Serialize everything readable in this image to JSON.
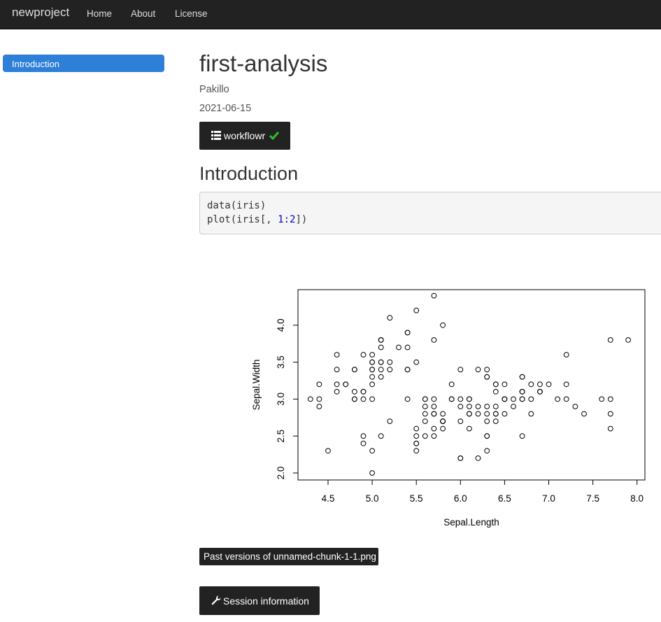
{
  "navbar": {
    "brand": "newproject",
    "links": [
      "Home",
      "About",
      "License"
    ]
  },
  "toc": {
    "active_item": "Introduction"
  },
  "header": {
    "title": "first-analysis",
    "author": "Pakillo",
    "date": "2021-06-15",
    "workflowr_label": "workflowr"
  },
  "section": {
    "heading": "Introduction",
    "code_line1": "data(iris)",
    "code_line2_pre": "plot(iris[, ",
    "code_line2_num": "1:2",
    "code_line2_post": "])"
  },
  "buttons": {
    "past_versions": "Past versions of unnamed-chunk-1-1.png",
    "session_info": "Session information"
  },
  "colors": {
    "navbar_bg": "#222222",
    "toc_active_bg": "#2e7fd8",
    "check_green": "#2ebd2e",
    "code_number": "#0000cf"
  },
  "icons": {
    "workflowr": "list-icon",
    "status": "check-icon",
    "session": "wrench-icon"
  },
  "chart_data": {
    "type": "scatter",
    "xlabel": "Sepal.Length",
    "ylabel": "Sepal.Width",
    "xlim": [
      4.3,
      7.9
    ],
    "ylim": [
      2.0,
      4.4
    ],
    "x_ticks": [
      "4.5",
      "5.0",
      "5.5",
      "6.0",
      "6.5",
      "7.0",
      "7.5",
      "8.0"
    ],
    "y_ticks": [
      "2.0",
      "2.5",
      "3.0",
      "3.5",
      "4.0"
    ],
    "points": [
      [
        5.1,
        3.5
      ],
      [
        4.9,
        3.0
      ],
      [
        4.7,
        3.2
      ],
      [
        4.6,
        3.1
      ],
      [
        5.0,
        3.6
      ],
      [
        5.4,
        3.9
      ],
      [
        4.6,
        3.4
      ],
      [
        5.0,
        3.4
      ],
      [
        4.4,
        2.9
      ],
      [
        4.9,
        3.1
      ],
      [
        5.4,
        3.7
      ],
      [
        4.8,
        3.4
      ],
      [
        4.8,
        3.0
      ],
      [
        4.3,
        3.0
      ],
      [
        5.8,
        4.0
      ],
      [
        5.7,
        4.4
      ],
      [
        5.4,
        3.9
      ],
      [
        5.1,
        3.5
      ],
      [
        5.7,
        3.8
      ],
      [
        5.1,
        3.8
      ],
      [
        5.4,
        3.4
      ],
      [
        5.1,
        3.7
      ],
      [
        4.6,
        3.6
      ],
      [
        5.1,
        3.3
      ],
      [
        4.8,
        3.4
      ],
      [
        5.0,
        3.0
      ],
      [
        5.0,
        3.4
      ],
      [
        5.2,
        3.5
      ],
      [
        5.2,
        3.4
      ],
      [
        4.7,
        3.2
      ],
      [
        4.8,
        3.1
      ],
      [
        5.4,
        3.4
      ],
      [
        5.2,
        4.1
      ],
      [
        5.5,
        4.2
      ],
      [
        4.9,
        3.1
      ],
      [
        5.0,
        3.2
      ],
      [
        5.5,
        3.5
      ],
      [
        4.9,
        3.6
      ],
      [
        4.4,
        3.0
      ],
      [
        5.1,
        3.4
      ],
      [
        5.0,
        3.5
      ],
      [
        4.5,
        2.3
      ],
      [
        4.4,
        3.2
      ],
      [
        5.0,
        3.5
      ],
      [
        5.1,
        3.8
      ],
      [
        4.8,
        3.0
      ],
      [
        5.1,
        3.8
      ],
      [
        4.6,
        3.2
      ],
      [
        5.3,
        3.7
      ],
      [
        5.0,
        3.3
      ],
      [
        7.0,
        3.2
      ],
      [
        6.4,
        3.2
      ],
      [
        6.9,
        3.1
      ],
      [
        5.5,
        2.3
      ],
      [
        6.5,
        2.8
      ],
      [
        5.7,
        2.8
      ],
      [
        6.3,
        3.3
      ],
      [
        4.9,
        2.4
      ],
      [
        6.6,
        2.9
      ],
      [
        5.2,
        2.7
      ],
      [
        5.0,
        2.0
      ],
      [
        5.9,
        3.0
      ],
      [
        6.0,
        2.2
      ],
      [
        6.1,
        2.9
      ],
      [
        5.6,
        2.9
      ],
      [
        6.7,
        3.1
      ],
      [
        5.6,
        3.0
      ],
      [
        5.8,
        2.7
      ],
      [
        6.2,
        2.2
      ],
      [
        5.6,
        2.5
      ],
      [
        5.9,
        3.2
      ],
      [
        6.1,
        2.8
      ],
      [
        6.3,
        2.5
      ],
      [
        6.1,
        2.8
      ],
      [
        6.4,
        2.9
      ],
      [
        6.6,
        3.0
      ],
      [
        6.8,
        2.8
      ],
      [
        6.7,
        3.0
      ],
      [
        6.0,
        2.9
      ],
      [
        5.7,
        2.6
      ],
      [
        5.5,
        2.4
      ],
      [
        5.5,
        2.4
      ],
      [
        5.8,
        2.7
      ],
      [
        6.0,
        2.7
      ],
      [
        5.4,
        3.0
      ],
      [
        6.0,
        3.4
      ],
      [
        6.7,
        3.1
      ],
      [
        6.3,
        2.3
      ],
      [
        5.6,
        3.0
      ],
      [
        5.5,
        2.5
      ],
      [
        5.5,
        2.6
      ],
      [
        6.1,
        3.0
      ],
      [
        5.8,
        2.6
      ],
      [
        5.0,
        2.3
      ],
      [
        5.6,
        2.7
      ],
      [
        5.7,
        3.0
      ],
      [
        5.7,
        2.9
      ],
      [
        6.2,
        2.9
      ],
      [
        5.1,
        2.5
      ],
      [
        5.7,
        2.8
      ],
      [
        6.3,
        3.3
      ],
      [
        5.8,
        2.7
      ],
      [
        7.1,
        3.0
      ],
      [
        6.3,
        2.9
      ],
      [
        6.5,
        3.0
      ],
      [
        7.6,
        3.0
      ],
      [
        4.9,
        2.5
      ],
      [
        7.3,
        2.9
      ],
      [
        6.7,
        2.5
      ],
      [
        7.2,
        3.6
      ],
      [
        6.5,
        3.2
      ],
      [
        6.4,
        2.7
      ],
      [
        6.8,
        3.0
      ],
      [
        5.7,
        2.5
      ],
      [
        5.8,
        2.8
      ],
      [
        6.4,
        3.2
      ],
      [
        6.5,
        3.0
      ],
      [
        7.7,
        3.8
      ],
      [
        7.7,
        2.6
      ],
      [
        6.0,
        2.2
      ],
      [
        6.9,
        3.2
      ],
      [
        5.6,
        2.8
      ],
      [
        7.7,
        2.8
      ],
      [
        6.3,
        2.7
      ],
      [
        6.7,
        3.3
      ],
      [
        7.2,
        3.2
      ],
      [
        6.2,
        2.8
      ],
      [
        6.1,
        3.0
      ],
      [
        6.4,
        2.8
      ],
      [
        7.2,
        3.0
      ],
      [
        7.4,
        2.8
      ],
      [
        7.9,
        3.8
      ],
      [
        6.4,
        2.8
      ],
      [
        6.3,
        2.8
      ],
      [
        6.1,
        2.6
      ],
      [
        7.7,
        3.0
      ],
      [
        6.3,
        3.4
      ],
      [
        6.4,
        3.1
      ],
      [
        6.0,
        3.0
      ],
      [
        6.9,
        3.1
      ],
      [
        6.7,
        3.1
      ],
      [
        6.9,
        3.1
      ],
      [
        5.8,
        2.7
      ],
      [
        6.8,
        3.2
      ],
      [
        6.7,
        3.3
      ],
      [
        6.7,
        3.0
      ],
      [
        6.3,
        2.5
      ],
      [
        6.5,
        3.0
      ],
      [
        6.2,
        3.4
      ],
      [
        5.9,
        3.0
      ]
    ]
  }
}
